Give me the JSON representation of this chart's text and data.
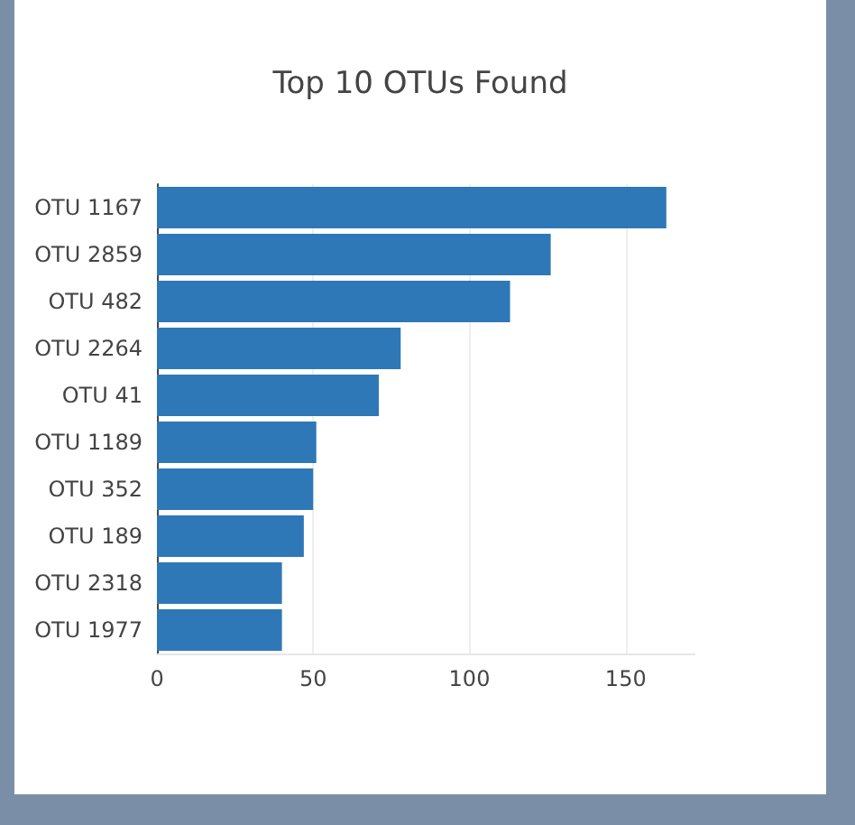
{
  "chart_data": {
    "type": "bar",
    "orientation": "horizontal",
    "title": "Top 10 OTUs Found",
    "categories": [
      "OTU 1167",
      "OTU 2859",
      "OTU 482",
      "OTU 2264",
      "OTU 41",
      "OTU 1189",
      "OTU 352",
      "OTU 189",
      "OTU 2318",
      "OTU 1977"
    ],
    "values": [
      163,
      126,
      113,
      78,
      71,
      51,
      50,
      47,
      40,
      40
    ],
    "color": "#2e78b7",
    "xlim": [
      0,
      172
    ],
    "xticks": [
      0,
      50,
      100,
      150
    ],
    "grid": "x"
  }
}
